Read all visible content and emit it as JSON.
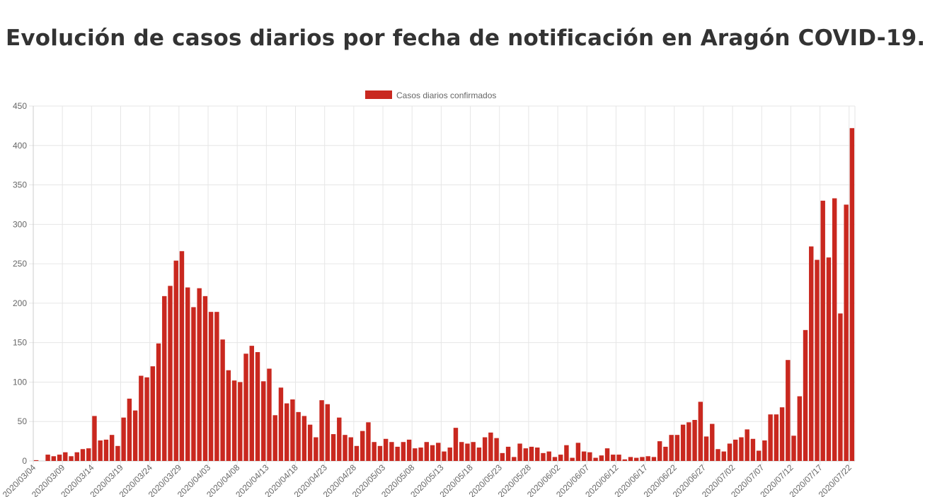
{
  "page": {
    "title": "Evolución de casos diarios por fecha de notificación en Aragón COVID-19."
  },
  "chart_data": {
    "type": "bar",
    "title": "",
    "xlabel": "",
    "ylabel": "",
    "ylim": [
      0,
      450
    ],
    "yticks": [
      0,
      50,
      100,
      150,
      200,
      250,
      300,
      350,
      400,
      450
    ],
    "grid": true,
    "legend_position": "top",
    "start_date": "2020/03/04",
    "end_date": "2020/07/22",
    "xtick_labels": [
      "2020/03/04",
      "2020/03/09",
      "2020/03/14",
      "2020/03/19",
      "2020/03/24",
      "2020/03/29",
      "2020/04/03",
      "2020/04/08",
      "2020/04/13",
      "2020/04/18",
      "2020/04/23",
      "2020/04/28",
      "2020/05/03",
      "2020/05/08",
      "2020/05/13",
      "2020/05/18",
      "2020/05/23",
      "2020/05/28",
      "2020/06/02",
      "2020/06/07",
      "2020/06/12",
      "2020/06/17",
      "2020/06/22",
      "2020/06/27",
      "2020/07/02",
      "2020/07/07",
      "2020/07/12",
      "2020/07/17",
      "2020/07/22"
    ],
    "series": [
      {
        "name": "Casos diarios confirmados",
        "color": "#c9281f",
        "values": [
          1,
          0,
          8,
          6,
          8,
          11,
          6,
          11,
          15,
          16,
          57,
          26,
          27,
          33,
          19,
          55,
          79,
          64,
          108,
          106,
          120,
          149,
          209,
          222,
          254,
          266,
          220,
          195,
          219,
          209,
          189,
          189,
          154,
          115,
          102,
          100,
          136,
          146,
          138,
          101,
          117,
          58,
          93,
          73,
          78,
          62,
          57,
          46,
          30,
          77,
          72,
          34,
          55,
          33,
          30,
          19,
          38,
          49,
          24,
          19,
          28,
          24,
          18,
          24,
          27,
          16,
          17,
          24,
          20,
          23,
          12,
          17,
          42,
          24,
          22,
          24,
          17,
          30,
          36,
          29,
          10,
          18,
          5,
          22,
          16,
          18,
          17,
          10,
          12,
          5,
          8,
          20,
          4,
          23,
          12,
          11,
          4,
          7,
          16,
          8,
          8,
          2,
          5,
          4,
          5,
          6,
          5,
          25,
          18,
          33,
          33,
          46,
          49,
          52,
          75,
          31,
          47,
          15,
          12,
          22,
          27,
          30,
          40,
          28,
          13,
          26,
          59,
          59,
          68,
          128,
          32,
          82,
          166,
          272,
          255,
          330,
          258,
          333,
          187,
          325,
          422
        ]
      }
    ]
  }
}
